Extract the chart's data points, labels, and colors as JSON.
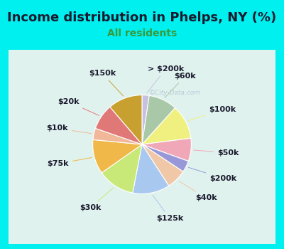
{
  "title": "Income distribution in Phelps, NY (%)",
  "subtitle": "All residents",
  "watermark": "©City-Data.com",
  "background_color": "#00EFEF",
  "chart_bg_color": "#e0f2ee",
  "labels": [
    "> $200k",
    "$60k",
    "$100k",
    "$50k",
    "$200k",
    "$40k",
    "$125k",
    "$30k",
    "$75k",
    "$10k",
    "$20k",
    "$150k"
  ],
  "sizes": [
    2.5,
    10,
    12,
    8,
    4,
    7,
    13,
    13,
    12,
    4,
    9,
    12
  ],
  "colors": [
    "#c8c0e0",
    "#a8c8a8",
    "#f0f080",
    "#f0a8b8",
    "#9898d8",
    "#f0c8a8",
    "#a8c8f0",
    "#c8e878",
    "#f0b848",
    "#f0b898",
    "#e07878",
    "#c8a030"
  ],
  "label_fontsize": 8,
  "title_fontsize": 13,
  "subtitle_fontsize": 10,
  "subtitle_color": "#3a9a3a",
  "startangle": 90,
  "pct_distance": 0.75,
  "label_distance": 1.22
}
